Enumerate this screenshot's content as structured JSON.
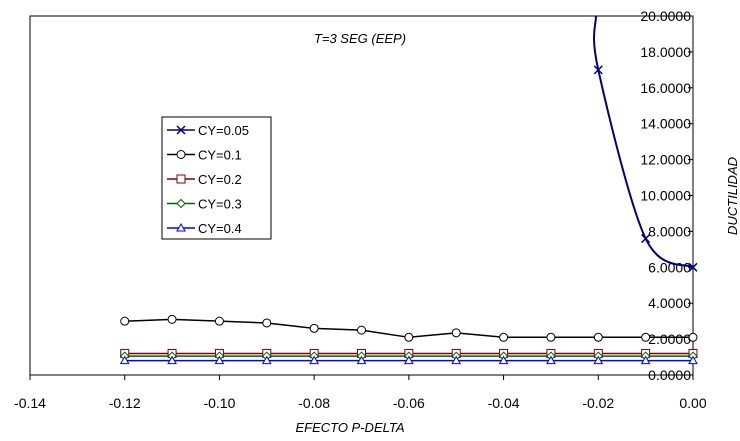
{
  "chart_data": {
    "type": "line",
    "title": "",
    "annotation": "T=3 SEG (EEP)",
    "xlabel": "EFECTO P-DELTA",
    "ylabel": "DUCTILIDAD",
    "xlim": [
      -0.14,
      0.0
    ],
    "ylim": [
      0,
      20
    ],
    "x_ticks": [
      "-0.14",
      "-0.12",
      "-0.10",
      "-0.08",
      "-0.06",
      "-0.04",
      "-0.02",
      "0.00"
    ],
    "y_ticks": [
      "0.0000",
      "2.0000",
      "4.0000",
      "6.0000",
      "8.0000",
      "10.0000",
      "12.0000",
      "14.0000",
      "16.0000",
      "18.0000",
      "20.0000"
    ],
    "grid": false,
    "legend_position": "left",
    "series": [
      {
        "name": "CY=0.05",
        "color": "#000080",
        "marker": "x",
        "x": [
          0.0,
          -0.01,
          -0.02,
          -0.0205
        ],
        "y": [
          6.0,
          7.6,
          17.0,
          20.0
        ],
        "marker_x": [
          0.0,
          -0.01,
          -0.02
        ]
      },
      {
        "name": "CY=0.1",
        "color": "#000000",
        "marker": "circle",
        "x": [
          -0.12,
          -0.11,
          -0.1,
          -0.09,
          -0.08,
          -0.07,
          -0.06,
          -0.05,
          -0.04,
          -0.03,
          -0.02,
          -0.01,
          0.0
        ],
        "y": [
          3.0,
          3.1,
          3.0,
          2.9,
          2.6,
          2.5,
          2.1,
          2.35,
          2.1,
          2.1,
          2.1,
          2.1,
          2.1
        ]
      },
      {
        "name": "CY=0.2",
        "color": "#800000",
        "marker": "square",
        "x": [
          -0.12,
          -0.11,
          -0.1,
          -0.09,
          -0.08,
          -0.07,
          -0.06,
          -0.05,
          -0.04,
          -0.03,
          -0.02,
          -0.01,
          0.0
        ],
        "y": [
          1.2,
          1.2,
          1.2,
          1.2,
          1.2,
          1.2,
          1.2,
          1.2,
          1.2,
          1.2,
          1.2,
          1.2,
          1.2
        ]
      },
      {
        "name": "CY=0.3",
        "color": "#006400",
        "marker": "diamond",
        "x": [
          -0.12,
          -0.11,
          -0.1,
          -0.09,
          -0.08,
          -0.07,
          -0.06,
          -0.05,
          -0.04,
          -0.03,
          -0.02,
          -0.01,
          0.0
        ],
        "y": [
          1.05,
          1.05,
          1.05,
          1.05,
          1.05,
          1.05,
          1.05,
          1.05,
          1.05,
          1.05,
          1.05,
          1.05,
          1.05
        ]
      },
      {
        "name": "CY=0.4",
        "color": "#0000ff",
        "marker": "triangle",
        "x": [
          -0.12,
          -0.11,
          -0.1,
          -0.09,
          -0.08,
          -0.07,
          -0.06,
          -0.05,
          -0.04,
          -0.03,
          -0.02,
          -0.01,
          0.0
        ],
        "y": [
          0.8,
          0.8,
          0.8,
          0.8,
          0.8,
          0.8,
          0.8,
          0.8,
          0.8,
          0.8,
          0.8,
          0.8,
          0.8
        ]
      }
    ]
  }
}
